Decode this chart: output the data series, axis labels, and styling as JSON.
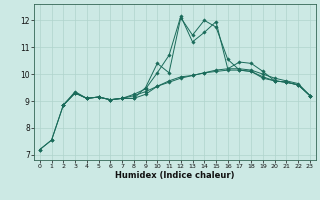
{
  "xlabel": "Humidex (Indice chaleur)",
  "xlim": [
    -0.5,
    23.5
  ],
  "ylim": [
    6.8,
    12.6
  ],
  "xticks": [
    0,
    1,
    2,
    3,
    4,
    5,
    6,
    7,
    8,
    9,
    10,
    11,
    12,
    13,
    14,
    15,
    16,
    17,
    18,
    19,
    20,
    21,
    22,
    23
  ],
  "yticks": [
    7,
    8,
    9,
    10,
    11,
    12
  ],
  "bg_color": "#cce9e4",
  "grid_color": "#b0d4cc",
  "line_color": "#1a6b5a",
  "series1_x": [
    0,
    1,
    2,
    3,
    4,
    5,
    6,
    7,
    8,
    9,
    10,
    11,
    12,
    13,
    14,
    15,
    16,
    17,
    18,
    19,
    20,
    21,
    22,
    23
  ],
  "series1_y": [
    7.2,
    7.55,
    8.85,
    9.3,
    9.1,
    9.15,
    9.05,
    9.1,
    9.2,
    9.35,
    9.55,
    9.7,
    9.85,
    9.95,
    10.05,
    10.1,
    10.15,
    10.15,
    10.1,
    9.85,
    9.75,
    9.7,
    9.6,
    9.2
  ],
  "series2_x": [
    0,
    1,
    2,
    3,
    4,
    5,
    6,
    7,
    8,
    9,
    10,
    11,
    12,
    13,
    14,
    15,
    16,
    17,
    18,
    19,
    20,
    21,
    22,
    23
  ],
  "series2_y": [
    7.2,
    7.55,
    8.85,
    9.3,
    9.1,
    9.15,
    9.05,
    9.1,
    9.25,
    9.45,
    10.05,
    10.7,
    12.15,
    11.2,
    11.55,
    11.95,
    10.2,
    10.45,
    10.4,
    10.1,
    9.75,
    9.7,
    9.6,
    9.2
  ],
  "series3_x": [
    2,
    3,
    4,
    5,
    6,
    7,
    8,
    9,
    10,
    11,
    12,
    13,
    14,
    15,
    16,
    17,
    18,
    19,
    20,
    21,
    22,
    23
  ],
  "series3_y": [
    8.85,
    9.35,
    9.1,
    9.15,
    9.05,
    9.1,
    9.1,
    9.5,
    10.4,
    10.05,
    12.1,
    11.45,
    12.0,
    11.75,
    10.55,
    10.15,
    10.1,
    9.9,
    9.75,
    9.7,
    9.6,
    9.2
  ],
  "series4_x": [
    2,
    3,
    4,
    5,
    6,
    7,
    8,
    9,
    10,
    11,
    12,
    13,
    14,
    15,
    16,
    17,
    18,
    19,
    20,
    21,
    22,
    23
  ],
  "series4_y": [
    8.85,
    9.3,
    9.1,
    9.15,
    9.05,
    9.1,
    9.1,
    9.25,
    9.55,
    9.75,
    9.9,
    9.95,
    10.05,
    10.15,
    10.2,
    10.2,
    10.15,
    10.0,
    9.85,
    9.75,
    9.65,
    9.2
  ]
}
